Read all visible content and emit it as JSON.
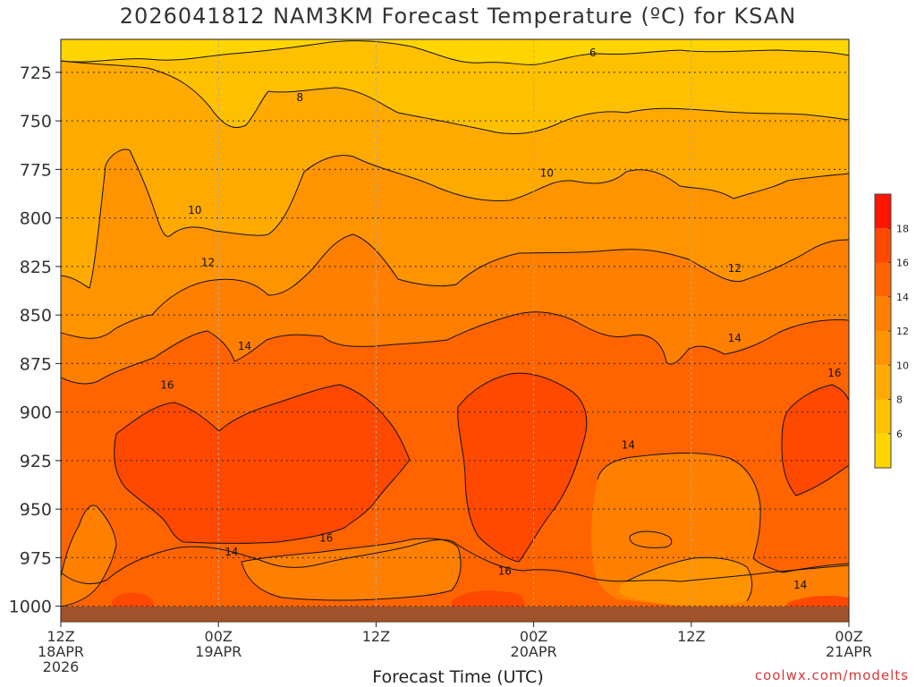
{
  "title": "2026041812 NAM3KM Forecast Temperature (ºC) for KSAN",
  "footer": {
    "xaxis_title": "Forecast Time (UTC)",
    "credit": "coolwx.com/modelts"
  },
  "colors": {
    "c4_6": "#ffd500",
    "c6_8": "#ffc000",
    "c8_10": "#ffaa00",
    "c10_12": "#ff9400",
    "c12_14": "#ff7f00",
    "c14_16": "#ff6400",
    "c16_18": "#ff4800",
    "c18_20": "#ff1400",
    "ground": "#a0522d"
  },
  "chart_data": {
    "type": "heatmap",
    "title": "2026041812 NAM3KM Forecast Temperature (ºC) for KSAN",
    "xlabel": "Forecast Time (UTC)",
    "ylabel": "",
    "y_ticks": [
      "725",
      "750",
      "775",
      "800",
      "825",
      "850",
      "875",
      "900",
      "925",
      "950",
      "975",
      "1000"
    ],
    "y_range": [
      1008,
      708
    ],
    "x_range_hours": [
      0,
      60
    ],
    "x_ticks": [
      {
        "hour": 0,
        "lines": [
          "12Z",
          "18APR",
          "2026"
        ]
      },
      {
        "hour": 12,
        "lines": [
          "00Z",
          "19APR"
        ]
      },
      {
        "hour": 24,
        "lines": [
          "12Z"
        ]
      },
      {
        "hour": 36,
        "lines": [
          "00Z",
          "20APR"
        ]
      },
      {
        "hour": 48,
        "lines": [
          "12Z"
        ]
      },
      {
        "hour": 60,
        "lines": [
          "00Z",
          "21APR"
        ]
      }
    ],
    "contour_labels": [
      {
        "text": "6",
        "hour": 40.5,
        "p": 715
      },
      {
        "text": "8",
        "hour": 18.2,
        "p": 738
      },
      {
        "text": "10",
        "hour": 10.2,
        "p": 796
      },
      {
        "text": "10",
        "hour": 37,
        "p": 777
      },
      {
        "text": "12",
        "hour": 11.2,
        "p": 823
      },
      {
        "text": "12",
        "hour": 51.3,
        "p": 826
      },
      {
        "text": "14",
        "hour": 14,
        "p": 866
      },
      {
        "text": "14",
        "hour": 51.3,
        "p": 862
      },
      {
        "text": "14",
        "hour": 13,
        "p": 972
      },
      {
        "text": "14",
        "hour": 43.2,
        "p": 917
      },
      {
        "text": "14",
        "hour": 56.3,
        "p": 989
      },
      {
        "text": "16",
        "hour": 8.1,
        "p": 886
      },
      {
        "text": "16",
        "hour": 20.2,
        "p": 965
      },
      {
        "text": "16",
        "hour": 33.8,
        "p": 982
      },
      {
        "text": "16",
        "hour": 58.9,
        "p": 880
      }
    ],
    "colorbar": {
      "levels": [
        4,
        6,
        8,
        10,
        12,
        14,
        16,
        18,
        20
      ],
      "tick_labels": [
        "6",
        "8",
        "10",
        "12",
        "14",
        "16",
        "18"
      ]
    }
  }
}
